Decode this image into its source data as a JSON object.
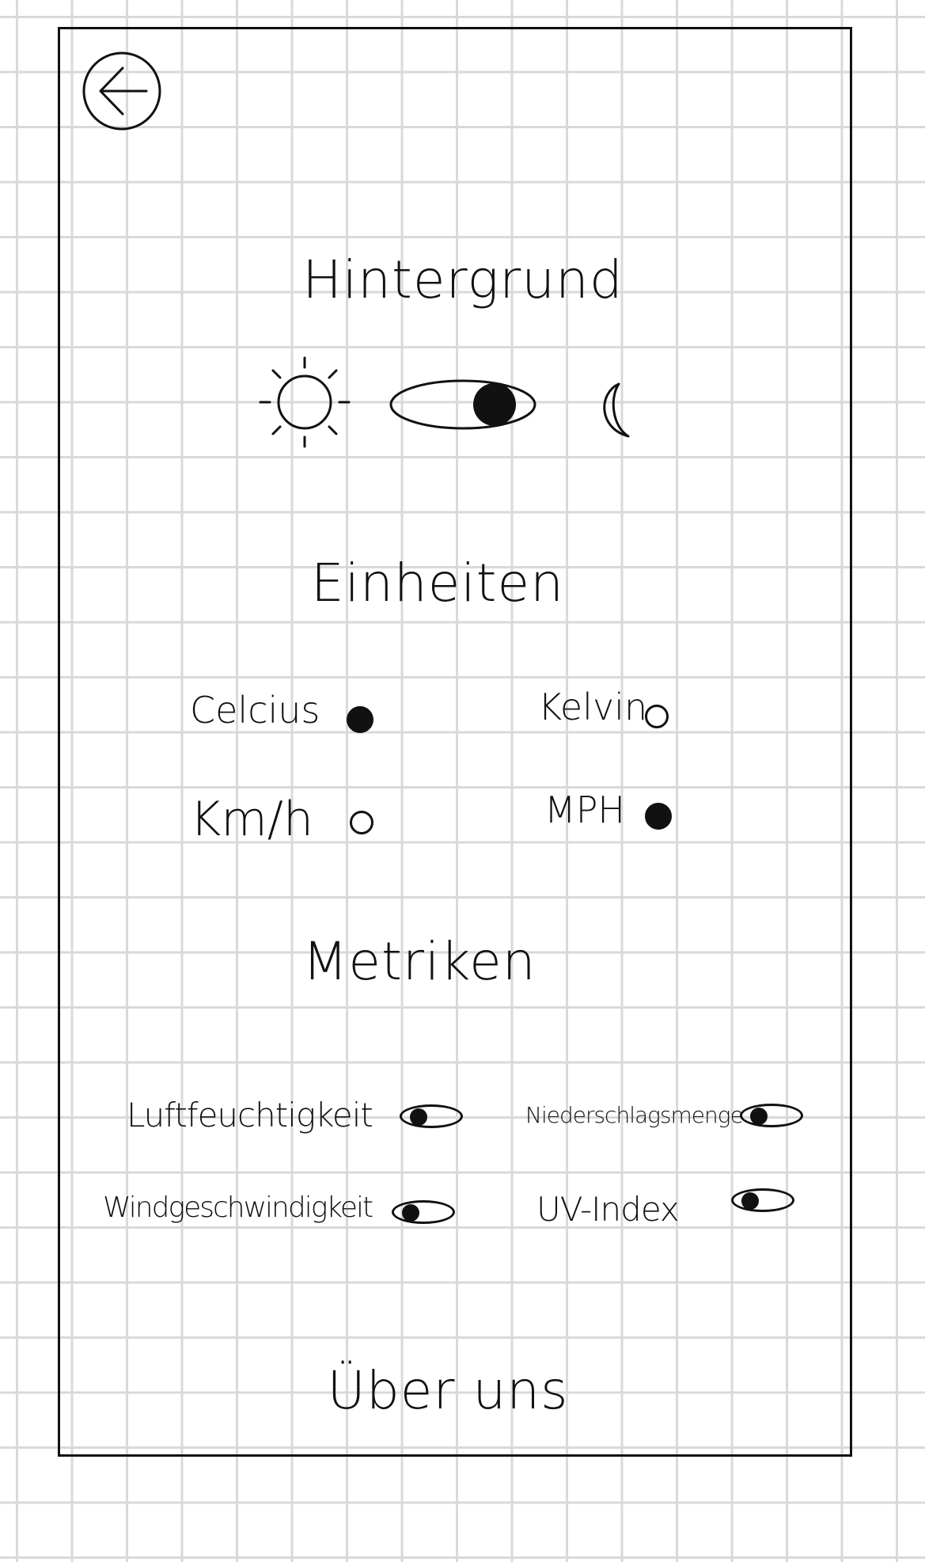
{
  "screen": {
    "back_icon": "arrow-left-circle-icon"
  },
  "background_section": {
    "title": "Hintergrund",
    "light_icon": "sun-icon",
    "dark_icon": "moon-icon",
    "toggle": {
      "value": "dark"
    }
  },
  "units_section": {
    "title": "Einheiten",
    "options": [
      {
        "label": "Celcius",
        "selected": true
      },
      {
        "label": "Kelvin",
        "selected": false
      },
      {
        "label": "Km/h",
        "selected": false
      },
      {
        "label": "MPH",
        "selected": true
      }
    ]
  },
  "metrics_section": {
    "title": "Metriken",
    "items": [
      {
        "label": "Luftfeuchtigkeit",
        "visible": true
      },
      {
        "label": "Niederschlagsmenge",
        "visible": true
      },
      {
        "label": "Windgeschwindigkeit",
        "visible": true
      },
      {
        "label": "UV-Index",
        "visible": true
      }
    ],
    "toggle_icon": "eye-toggle-icon"
  },
  "footer": {
    "about_label": "Über uns"
  }
}
